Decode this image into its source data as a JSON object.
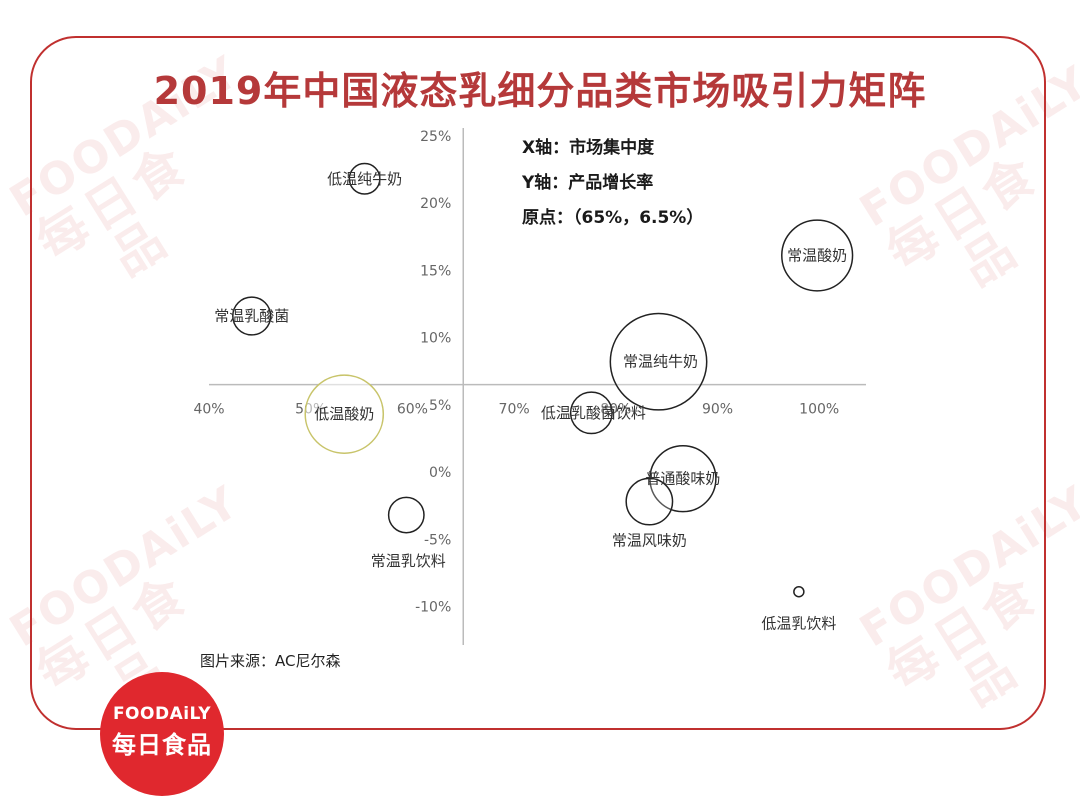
{
  "title": "2019年中国液态乳细分品类市场吸引力矩阵",
  "source": "图片来源：AC尼尔森",
  "logo": {
    "en": "FOODAiLY",
    "cn": "每日食品"
  },
  "watermark": {
    "en": "FOODAiLY",
    "cn": "每日食品"
  },
  "notes": {
    "x_axis": "X轴：市场集中度",
    "y_axis": "Y轴：产品增长率",
    "origin": "原点：（65%，6.5%）"
  },
  "colors": {
    "brand_red": "#c0302f",
    "title_red": "#b5393a",
    "bubble_stroke": "#222222",
    "highlight_stroke": "#c8c46a",
    "axis": "#bbbbbb"
  },
  "chart_data": {
    "type": "bubble",
    "origin": {
      "x": 65,
      "y": 6.5
    },
    "xlim": [
      40,
      105
    ],
    "ylim": [
      -12,
      26
    ],
    "x_ticks": [
      "40%",
      "50%",
      "60%",
      "70%",
      "80%",
      "90%",
      "100%"
    ],
    "y_ticks": [
      "25%",
      "20%",
      "15%",
      "10%",
      "5%",
      "0%",
      "-5%",
      "-10%"
    ],
    "bubbles": [
      {
        "name": "低温纯牛奶",
        "x": 55.3,
        "y": 21.8,
        "size": 2.5,
        "highlight": false
      },
      {
        "name": "常温乳酸菌",
        "x": 44.2,
        "y": 11.6,
        "size": 3.1,
        "highlight": false
      },
      {
        "name": "低温酸奶",
        "x": 53.3,
        "y": 4.3,
        "size": 6.4,
        "highlight": true
      },
      {
        "name": "常温乳饮料",
        "x": 59.4,
        "y": -3.2,
        "size": 2.9,
        "highlight": false
      },
      {
        "name": "常温酸奶",
        "x": 99.8,
        "y": 16.1,
        "size": 5.8,
        "highlight": false
      },
      {
        "name": "常温纯牛奶",
        "x": 84.2,
        "y": 8.2,
        "size": 7.9,
        "highlight": false
      },
      {
        "name": "低温乳酸菌饮料",
        "x": 77.6,
        "y": 4.4,
        "size": 3.4,
        "highlight": false
      },
      {
        "name": "普通酸味奶",
        "x": 86.6,
        "y": -0.5,
        "size": 5.4,
        "highlight": false
      },
      {
        "name": "常温风味奶",
        "x": 83.3,
        "y": -2.2,
        "size": 3.8,
        "highlight": false
      },
      {
        "name": "低温乳饮料",
        "x": 98.0,
        "y": -8.9,
        "size": 0.7,
        "highlight": false
      }
    ]
  }
}
